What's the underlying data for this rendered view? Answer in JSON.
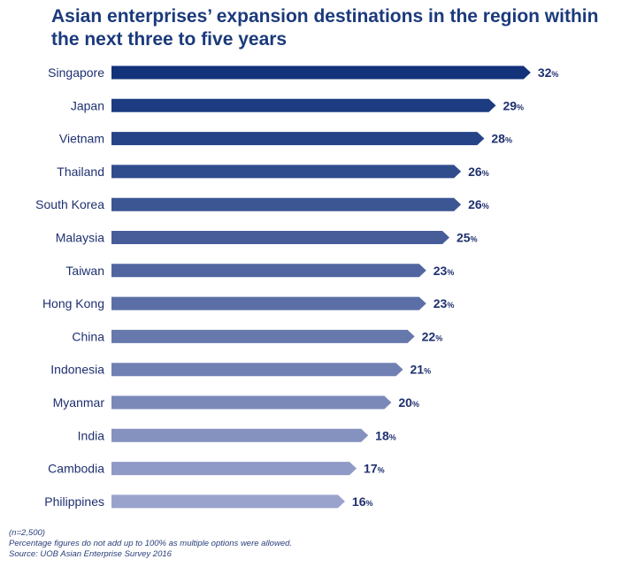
{
  "chart_data": {
    "type": "bar",
    "orientation": "horizontal",
    "title": "Asian enterprises’ expansion destinations in the region within the next three to five years",
    "categories": [
      "Singapore",
      "Japan",
      "Vietnam",
      "Thailand",
      "South Korea",
      "Malaysia",
      "Taiwan",
      "Hong Kong",
      "China",
      "Indonesia",
      "Myanmar",
      "India",
      "Cambodia",
      "Philippines"
    ],
    "values": [
      32,
      29,
      28,
      26,
      26,
      25,
      23,
      23,
      22,
      21,
      20,
      18,
      17,
      16
    ],
    "unit": "%",
    "colors": {
      "start": "#12327a",
      "end": "#9aa3cc"
    },
    "grid": false,
    "legend": "none"
  },
  "notes": [
    "(n=2,500)",
    "Percentage figures do not add up to 100% as multiple options were allowed.",
    "Source: UOB Asian Enterprise Survey 2016"
  ]
}
